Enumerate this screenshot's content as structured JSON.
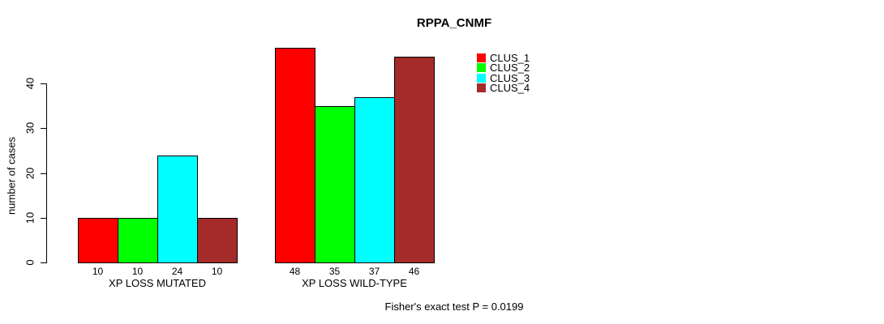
{
  "chart_data": {
    "type": "bar",
    "title": "RPPA_CNMF",
    "ylabel": "number of cases",
    "xlabel": "",
    "categories": [
      "XP LOSS MUTATED",
      "XP LOSS WILD-TYPE"
    ],
    "series": [
      {
        "name": "CLUS_1",
        "color": "#ff0000",
        "values": [
          10,
          48
        ]
      },
      {
        "name": "CLUS_2",
        "color": "#00ff00",
        "values": [
          10,
          35
        ]
      },
      {
        "name": "CLUS_3",
        "color": "#00ffff",
        "values": [
          24,
          37
        ]
      },
      {
        "name": "CLUS_4",
        "color": "#a52a2a",
        "values": [
          10,
          46
        ]
      }
    ],
    "show_bar_value_labels": true,
    "yticks": [
      0,
      10,
      20,
      30,
      40
    ],
    "ylim": [
      0,
      48
    ],
    "grid": false,
    "legend_position": "top-right",
    "footer": "Fisher's exact test P = 0.0199"
  }
}
